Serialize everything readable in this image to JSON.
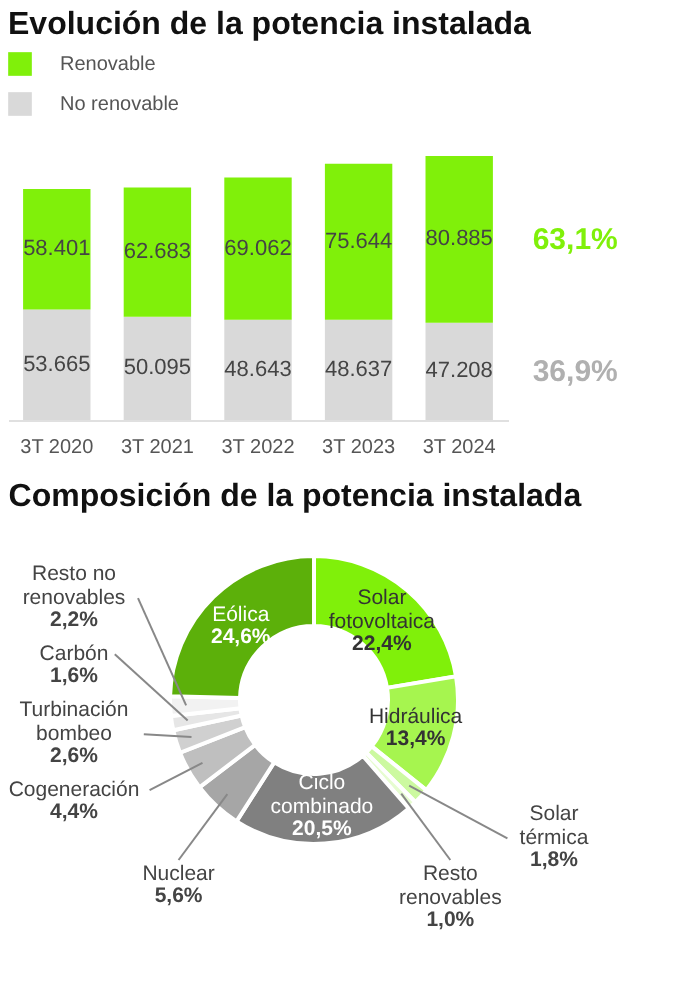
{
  "chart_data": [
    {
      "type": "bar",
      "title": "Evolución de la potencia instalada",
      "categories": [
        "3T 2020",
        "3T 2021",
        "3T 2022",
        "3T 2023",
        "3T 2024"
      ],
      "stacked": true,
      "legend": "top left",
      "series": [
        {
          "name": "No renovable",
          "color": "#d9d9d9",
          "values": [
            53665,
            50095,
            48643,
            48637,
            47208
          ],
          "value_labels": [
            "53.665",
            "50.095",
            "48.643",
            "48.637",
            "47.208"
          ]
        },
        {
          "name": "Renovable",
          "color": "#80f00a",
          "values": [
            58401,
            62683,
            69062,
            75644,
            80885
          ],
          "value_labels": [
            "58.401",
            "62.683",
            "69.062",
            "75.644",
            "80.885"
          ]
        }
      ],
      "annotations": [
        "63,1%",
        "36,9%"
      ]
    },
    {
      "type": "donut",
      "title": "Composición de la potencia instalada",
      "categories": [
        "Solar fotovoltaica",
        "Hidráulica",
        "Solar térmica",
        "Resto renovables",
        "Ciclo combinado",
        "Nuclear",
        "Cogeneración",
        "Turbinación bombeo",
        "Carbón",
        "Resto no renovables",
        "Eólica"
      ],
      "values": [
        22.4,
        13.4,
        1.8,
        1.0,
        20.5,
        5.6,
        4.4,
        2.6,
        1.6,
        2.2,
        24.6
      ],
      "value_labels": [
        "22,4%",
        "13,4%",
        "1,8%",
        "1,0%",
        "20,5%",
        "5,6%",
        "4,4%",
        "2,6%",
        "1,6%",
        "2,2%",
        "24,6%"
      ],
      "colors": [
        "#80f00a",
        "#a6f54f",
        "#ccf9a0",
        "#e6fcd0",
        "#808080",
        "#a6a6a6",
        "#bfbfbf",
        "#d0d0d0",
        "#e6e6e6",
        "#f2f2f2",
        "#5cb00a"
      ]
    }
  ]
}
